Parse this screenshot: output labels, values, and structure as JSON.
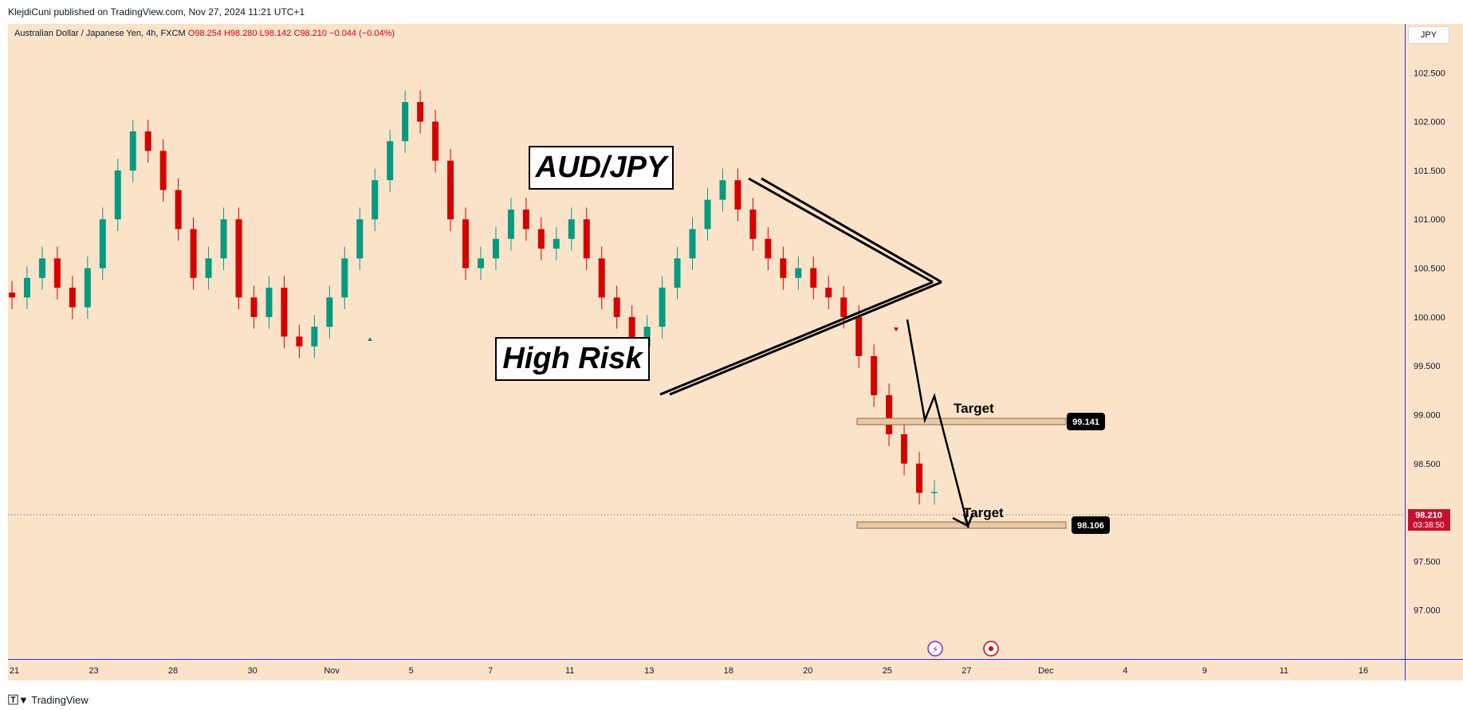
{
  "header": {
    "published": "KlejdiCuni published on TradingView.com, Nov 27, 2024 11:21 UTC+1"
  },
  "symbol": {
    "name": "Australian Dollar / Japanese Yen, 4h, FXCM",
    "open": "O98.254",
    "high": "H98.280",
    "low": "L98.142",
    "close": "C98.210",
    "change": "−0.044 (−0.04%)"
  },
  "currency_button": "JPY",
  "footer": {
    "brand": "TradingView"
  },
  "annotations": {
    "title": "AUD/JPY",
    "risk": "High Risk",
    "target1_text": "Target",
    "target2_text": "Target",
    "target1_price": "99.141",
    "target2_price": "98.106"
  },
  "current_price": {
    "price": "98.210",
    "countdown": "03:38:50"
  },
  "colors": {
    "up": "#089981",
    "down": "#d50000",
    "background": "#fbe3ca",
    "scale_line": "#2a2ee6"
  },
  "chart_data": {
    "type": "candlestick",
    "title": "",
    "y_ticks": [
      "102.500",
      "102.000",
      "101.500",
      "101.000",
      "100.500",
      "100.000",
      "99.500",
      "99.000",
      "98.500",
      "98.000",
      "97.500",
      "97.000"
    ],
    "x_ticks": [
      "21",
      "23",
      "28",
      "30",
      "Nov",
      "5",
      "7",
      "11",
      "13",
      "18",
      "20",
      "25",
      "27",
      "Dec",
      "4",
      "9",
      "11",
      "16"
    ],
    "ylim": [
      96.5,
      103.0
    ],
    "levels": [
      99.141,
      98.106
    ],
    "closes": [
      100.2,
      100.4,
      100.6,
      100.3,
      100.1,
      100.5,
      101.0,
      101.5,
      101.9,
      101.7,
      101.3,
      100.9,
      100.4,
      100.6,
      101.0,
      100.2,
      100.0,
      100.3,
      99.8,
      99.7,
      99.9,
      100.2,
      100.6,
      101.0,
      101.4,
      101.8,
      102.2,
      102.0,
      101.6,
      101.0,
      100.5,
      100.6,
      100.8,
      101.1,
      100.9,
      100.7,
      100.8,
      101.0,
      100.6,
      100.2,
      100.0,
      99.7,
      99.9,
      100.3,
      100.6,
      100.9,
      101.2,
      101.4,
      101.1,
      100.8,
      100.6,
      100.4,
      100.5,
      100.3,
      100.2,
      100.0,
      99.6,
      99.2,
      98.8,
      98.5,
      98.2,
      98.21
    ]
  }
}
